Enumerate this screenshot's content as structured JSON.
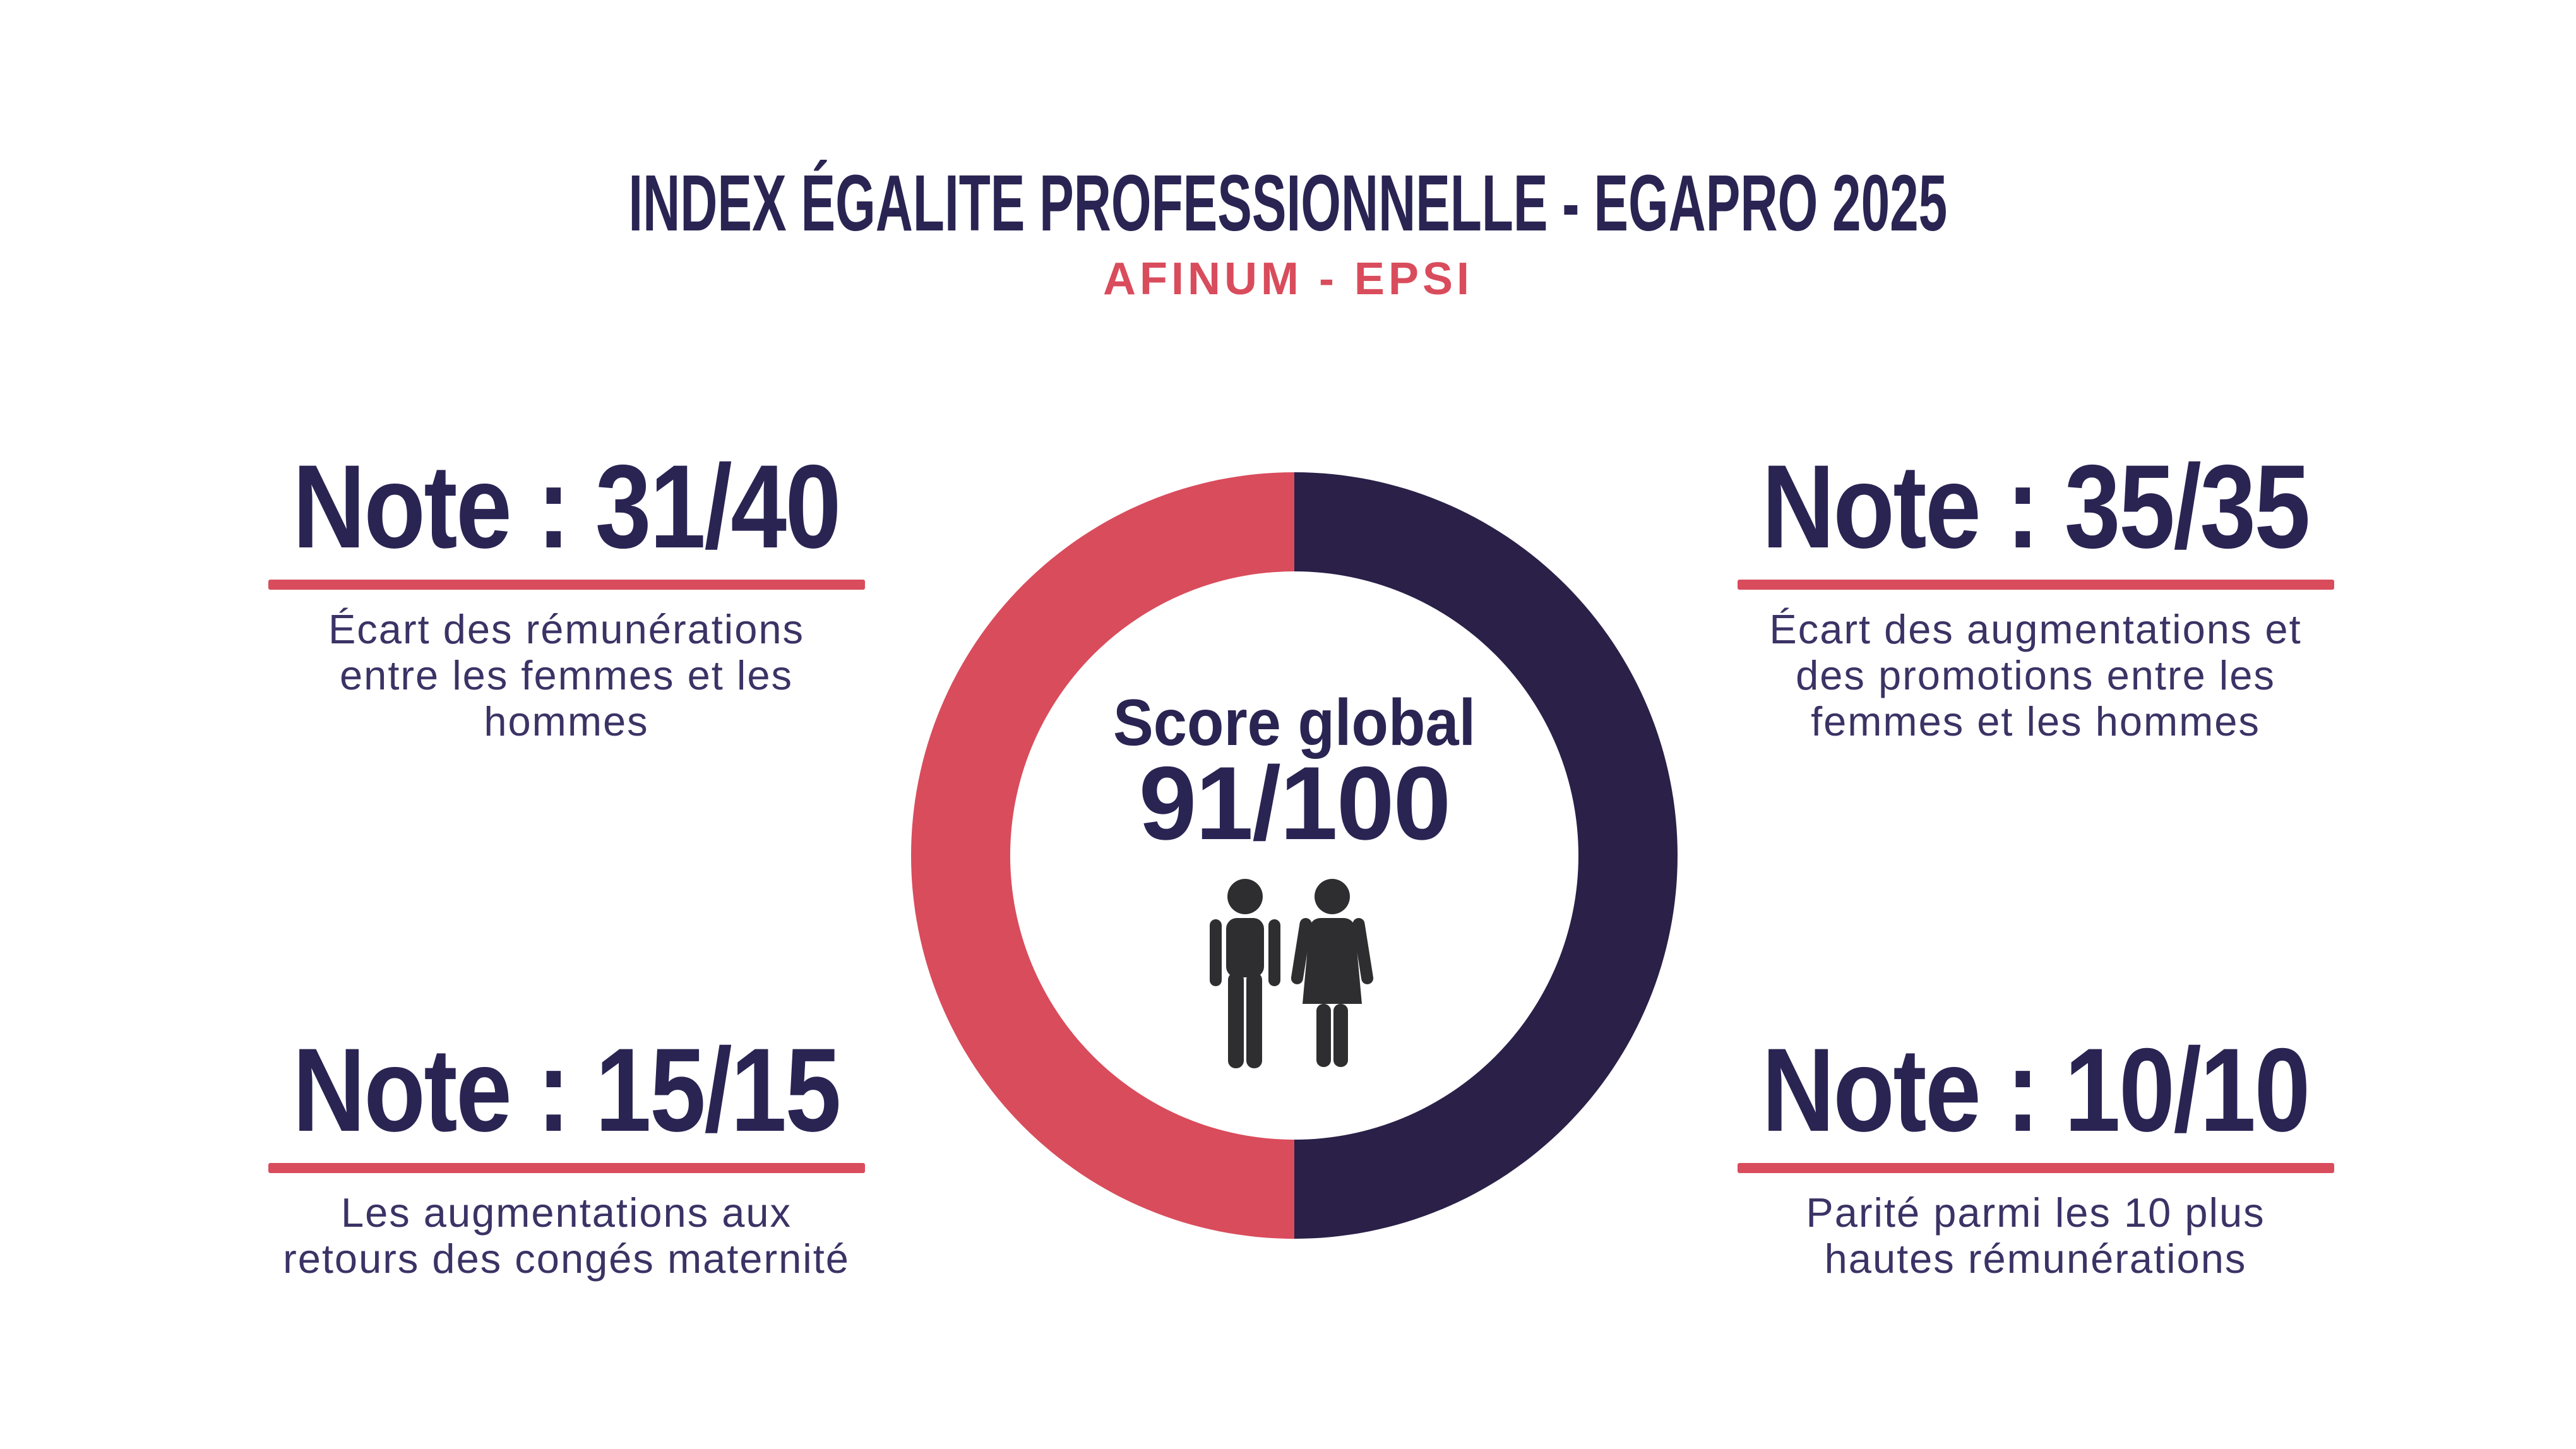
{
  "header": {
    "title": "INDEX ÉGALITE PROFESSIONNELLE - EGAPRO 2025",
    "subtitle": "AFINUM - EPSI"
  },
  "donut": {
    "center_label": "Score global",
    "score": "91/100"
  },
  "notes": [
    {
      "label": "Note : 31/40",
      "description": "Écart des rémunérations\nentre les femmes et les\nhommes"
    },
    {
      "label": "Note : 35/35",
      "description": "Écart des augmentations et\ndes promotions entre les\nfemmes et les hommes"
    },
    {
      "label": "Note : 15/15",
      "description": "Les augmentations aux\nretours des congés maternité"
    },
    {
      "label": "Note : 10/10",
      "description": "Parité parmi les 10 plus\nhautes rémunérations"
    }
  ],
  "icons": {
    "male": "male-figure-icon",
    "female": "female-figure-icon"
  },
  "colors": {
    "background": "#FFFFFF",
    "navy": "#2A2048",
    "dark_text": "#2A2453",
    "body_text": "#3B3365",
    "red": "#D94C5C",
    "icon": "#2E2E30"
  },
  "chart_data": {
    "type": "pie",
    "title": "Score global",
    "center_value": "91/100",
    "global_score": 91,
    "global_max": 100,
    "legend_position": "none",
    "segments": [
      {
        "name": "left-half",
        "value": 50,
        "color": "#D94C5C"
      },
      {
        "name": "right-half",
        "value": 50,
        "color": "#2A2048"
      }
    ],
    "subscores": [
      {
        "label": "Écart des rémunérations entre les femmes et les hommes",
        "score": 31,
        "max": 40
      },
      {
        "label": "Écart des augmentations et des promotions entre les femmes et les hommes",
        "score": 35,
        "max": 35
      },
      {
        "label": "Les augmentations aux retours des congés maternité",
        "score": 15,
        "max": 15
      },
      {
        "label": "Parité parmi les 10 plus hautes rémunérations",
        "score": 10,
        "max": 10
      }
    ]
  }
}
